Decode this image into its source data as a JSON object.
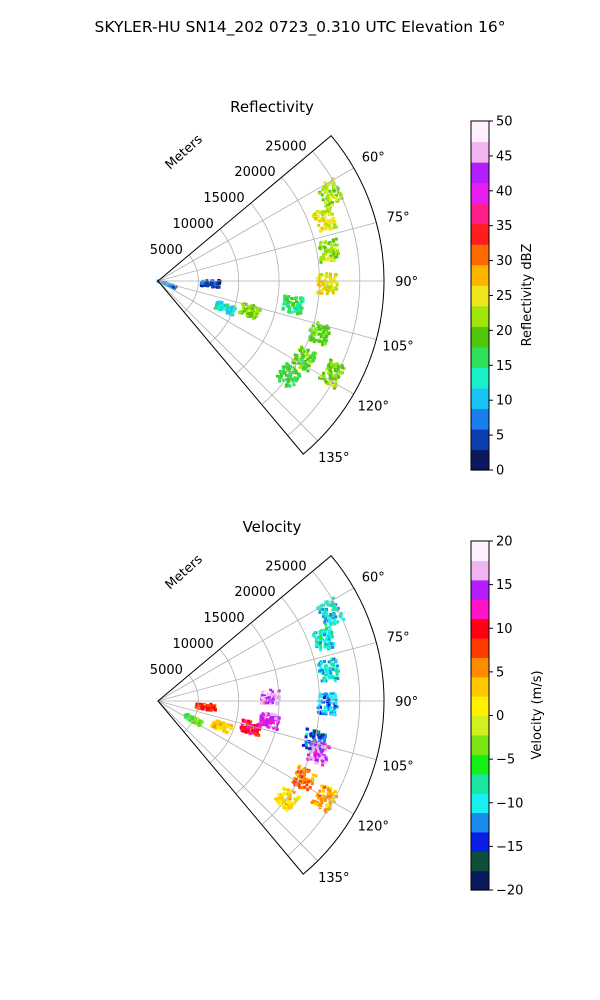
{
  "figure": {
    "title": "SKYLER-HU  SN14_202  0723_0.310 UTC Elevation 16°"
  },
  "chart_data": [
    {
      "type": "polar-sector",
      "title": "Reflectivity",
      "radial_label": "Meters",
      "radial_ticks": [
        5000,
        10000,
        15000,
        20000,
        25000
      ],
      "radial_tick_labels": [
        "5000",
        "10000",
        "15000",
        "20000",
        "25000"
      ],
      "rmax": 28000,
      "theta_range_deg": [
        50,
        140
      ],
      "angle_ticks_deg": [
        60,
        75,
        90,
        105,
        120,
        135
      ],
      "angle_tick_labels": [
        "60°",
        "75°",
        "90°",
        "105°",
        "120°",
        "135°"
      ],
      "grid": true,
      "colorbar": {
        "label": "Reflectivity dBZ",
        "range": [
          0,
          50
        ],
        "ticks": [
          0,
          5,
          10,
          15,
          20,
          25,
          30,
          35,
          40,
          45,
          50
        ],
        "tick_labels": [
          "0",
          "5",
          "10",
          "15",
          "20",
          "25",
          "30",
          "35",
          "40",
          "45",
          "50"
        ],
        "colors": [
          "#0a1a5c",
          "#0b3fb0",
          "#1a7df0",
          "#19c3f5",
          "#18f0c8",
          "#2ee05a",
          "#50c80a",
          "#9ee60a",
          "#f0e61e",
          "#ffb400",
          "#ff6a00",
          "#ff1e1e",
          "#ff1e8c",
          "#e61ef0",
          "#b41eff",
          "#f0b4f0",
          "#fff0ff"
        ]
      },
      "echo_regions": [
        {
          "r": 24000,
          "theta": 63,
          "value": 22
        },
        {
          "r": 22000,
          "theta": 70,
          "value": 24
        },
        {
          "r": 21500,
          "theta": 80,
          "value": 22
        },
        {
          "r": 21000,
          "theta": 91,
          "value": 25
        },
        {
          "r": 17000,
          "theta": 100,
          "value": 16
        },
        {
          "r": 12000,
          "theta": 108,
          "value": 21
        },
        {
          "r": 9000,
          "theta": 112,
          "value": 13
        },
        {
          "r": 21000,
          "theta": 108,
          "value": 19
        },
        {
          "r": 20500,
          "theta": 118,
          "value": 19
        },
        {
          "r": 24500,
          "theta": 118,
          "value": 21
        },
        {
          "r": 20000,
          "theta": 126,
          "value": 17
        },
        {
          "r": 6500,
          "theta": 93,
          "value": 5
        },
        {
          "r": 1200,
          "theta": 110,
          "value": 8
        }
      ]
    },
    {
      "type": "polar-sector",
      "title": "Velocity",
      "radial_label": "Meters",
      "radial_ticks": [
        5000,
        10000,
        15000,
        20000,
        25000
      ],
      "radial_tick_labels": [
        "5000",
        "10000",
        "15000",
        "20000",
        "25000"
      ],
      "rmax": 28000,
      "theta_range_deg": [
        50,
        140
      ],
      "angle_ticks_deg": [
        60,
        75,
        90,
        105,
        120,
        135
      ],
      "angle_tick_labels": [
        "60°",
        "75°",
        "90°",
        "105°",
        "120°",
        "135°"
      ],
      "grid": true,
      "colorbar": {
        "label": "Velocity (m/s)",
        "range": [
          -20,
          20
        ],
        "ticks": [
          -20,
          -15,
          -10,
          -5,
          0,
          5,
          10,
          15,
          20
        ],
        "tick_labels": [
          "−20",
          "−15",
          "−10",
          "−5",
          "0",
          "5",
          "10",
          "15",
          "20"
        ],
        "colors": [
          "#0a1a5c",
          "#0b4f3a",
          "#0a1ee6",
          "#1a8cf0",
          "#19f0f0",
          "#19e6a0",
          "#14f014",
          "#7ce614",
          "#d2f01e",
          "#fff000",
          "#ffc800",
          "#ff8c00",
          "#ff3c00",
          "#ff0014",
          "#ff14c8",
          "#b41eff",
          "#f0b4f0",
          "#fff0ff"
        ]
      },
      "echo_regions": [
        {
          "r": 24000,
          "theta": 63,
          "value": -10
        },
        {
          "r": 22000,
          "theta": 70,
          "value": -9
        },
        {
          "r": 21500,
          "theta": 80,
          "value": -10
        },
        {
          "r": 21000,
          "theta": 91,
          "value": -12
        },
        {
          "r": 14000,
          "theta": 88,
          "value": 16
        },
        {
          "r": 12000,
          "theta": 106,
          "value": 10
        },
        {
          "r": 8500,
          "theta": 112,
          "value": 2
        },
        {
          "r": 14000,
          "theta": 100,
          "value": 14
        },
        {
          "r": 20000,
          "theta": 104,
          "value": -14
        },
        {
          "r": 21000,
          "theta": 108,
          "value": 15
        },
        {
          "r": 20500,
          "theta": 118,
          "value": 6
        },
        {
          "r": 24000,
          "theta": 120,
          "value": 4
        },
        {
          "r": 20000,
          "theta": 127,
          "value": 2
        },
        {
          "r": 5000,
          "theta": 118,
          "value": -4
        },
        {
          "r": 6000,
          "theta": 97,
          "value": 8
        }
      ]
    }
  ]
}
